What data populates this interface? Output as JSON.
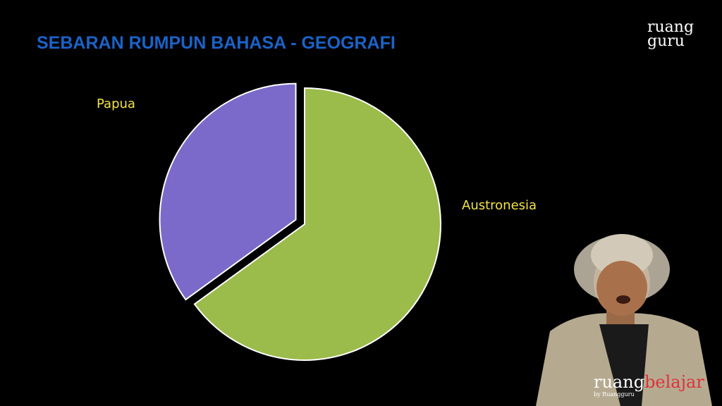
{
  "chart_data": {
    "type": "pie",
    "title": "SEBARAN RUMPUN BAHASA - GEOGRAFI",
    "categories": [
      "Austronesia",
      "Papua"
    ],
    "values": [
      65,
      35
    ],
    "colors": [
      "#9bbb4b",
      "#7b6ac9"
    ],
    "exploded": "Papua"
  },
  "logo": {
    "top_line1": "ruang",
    "top_line2": "guru",
    "bottom_part1": "ruang",
    "bottom_part2": "belajar",
    "bottom_byline": "by Ruangguru"
  }
}
